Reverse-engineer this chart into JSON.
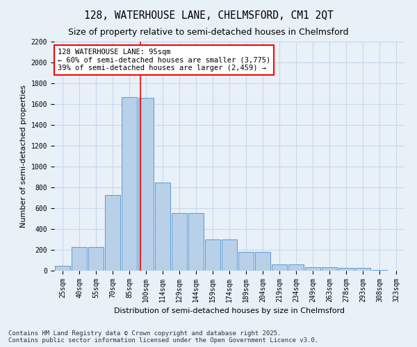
{
  "title": "128, WATERHOUSE LANE, CHELMSFORD, CM1 2QT",
  "subtitle": "Size of property relative to semi-detached houses in Chelmsford",
  "xlabel": "Distribution of semi-detached houses by size in Chelmsford",
  "ylabel": "Number of semi-detached properties",
  "categories": [
    "25sqm",
    "40sqm",
    "55sqm",
    "70sqm",
    "85sqm",
    "100sqm",
    "114sqm",
    "129sqm",
    "144sqm",
    "159sqm",
    "174sqm",
    "189sqm",
    "204sqm",
    "219sqm",
    "234sqm",
    "249sqm",
    "263sqm",
    "278sqm",
    "293sqm",
    "308sqm",
    "323sqm"
  ],
  "values": [
    45,
    225,
    230,
    725,
    1670,
    1660,
    845,
    555,
    555,
    300,
    300,
    180,
    180,
    60,
    60,
    35,
    35,
    25,
    25,
    10,
    0
  ],
  "bar_color": "#b8d0e8",
  "bar_edge_color": "#5b9bd5",
  "background_color": "#e8f0f8",
  "grid_color": "#c8d8ec",
  "vline_color": "red",
  "annotation_title": "128 WATERHOUSE LANE: 95sqm",
  "annotation_line1": "← 60% of semi-detached houses are smaller (3,775)",
  "annotation_line2": "39% of semi-detached houses are larger (2,459) →",
  "annotation_box_color": "white",
  "annotation_edge_color": "red",
  "ylim": [
    0,
    2200
  ],
  "yticks": [
    0,
    200,
    400,
    600,
    800,
    1000,
    1200,
    1400,
    1600,
    1800,
    2000,
    2200
  ],
  "footer1": "Contains HM Land Registry data © Crown copyright and database right 2025.",
  "footer2": "Contains public sector information licensed under the Open Government Licence v3.0.",
  "title_fontsize": 10.5,
  "subtitle_fontsize": 9,
  "axis_label_fontsize": 8,
  "tick_fontsize": 7,
  "annotation_fontsize": 7.5,
  "footer_fontsize": 6.5,
  "ylabel_fontsize": 8
}
